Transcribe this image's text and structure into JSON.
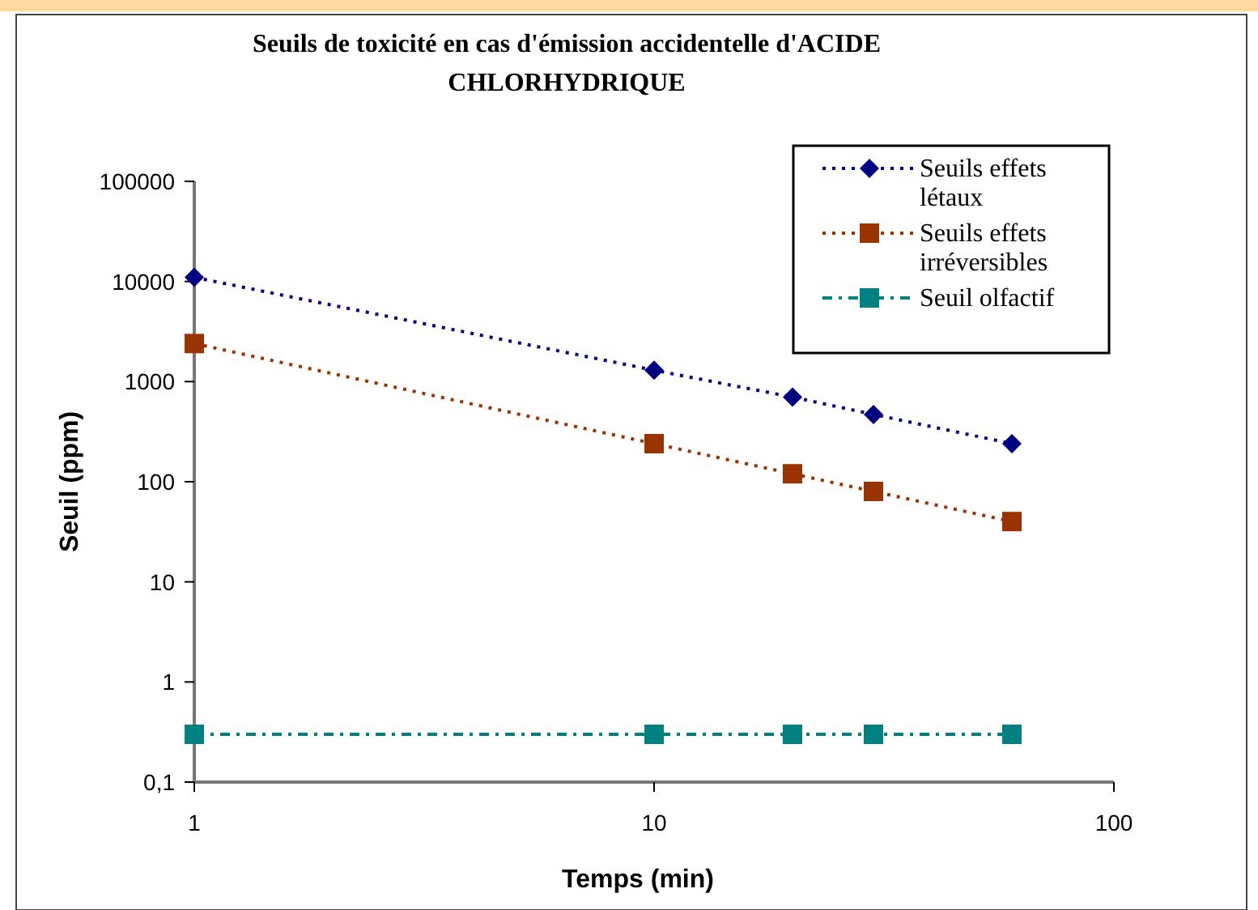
{
  "chart_data": {
    "type": "line",
    "title": "Seuils de toxicité en cas d'émission accidentelle d'ACIDE CHLORHYDRIQUE",
    "xlabel": "Temps (min)",
    "ylabel": "Seuil (ppm)",
    "log": "xy",
    "grid": false,
    "legend": "top right",
    "line_style": "dotted",
    "xlim": [
      1,
      100
    ],
    "xticks": [
      1,
      10,
      100
    ],
    "ylim": [
      0.1,
      100000
    ],
    "yticks": [
      {
        "value": 0.1,
        "label": "0,1"
      },
      1,
      10,
      100,
      1000,
      10000,
      100000
    ],
    "x": [
      1,
      10,
      20,
      30,
      60
    ],
    "series": [
      {
        "name": "Seuils effets létaux",
        "color": "#000080",
        "marker": "diamond",
        "values": [
          11000,
          1300,
          700,
          470,
          240
        ]
      },
      {
        "name": "Seuils effets irréversibles",
        "color": "#993300",
        "marker": "square",
        "values": [
          2400,
          240,
          120,
          80,
          40
        ]
      },
      {
        "name": "Seuil olfactif",
        "color": "#008080",
        "marker": "square",
        "line_style": "dashed",
        "values": [
          0.3,
          0.3,
          0.3,
          0.3,
          0.3
        ]
      }
    ]
  }
}
